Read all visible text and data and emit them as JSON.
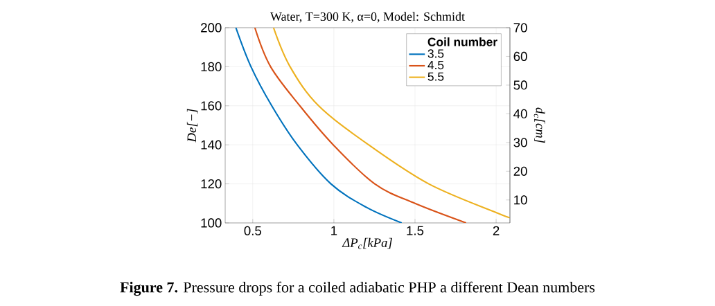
{
  "chart_data": {
    "type": "line",
    "title": "Water, T=300 K, α=0, Model: Schmidt",
    "xlabel": "ΔP$_{c}$[kPa]",
    "ylabel": "De[−]",
    "y2label": "d$_{c}$[cm]",
    "legend_title": "Coil number",
    "legend": "top right",
    "grid": true,
    "xlim": [
      0.33,
      2.085
    ],
    "xticks": [
      0.5,
      1,
      1.5,
      2
    ],
    "ylim": [
      100,
      200
    ],
    "yticks": [
      100,
      120,
      140,
      160,
      180,
      200
    ],
    "y2lim": [
      2,
      70
    ],
    "y2ticks": [
      10,
      20,
      30,
      40,
      50,
      60,
      70
    ],
    "series": [
      {
        "name": "3.5",
        "color": "#0072bd",
        "x": [
          0.396,
          0.489,
          0.617,
          0.774,
          0.982,
          1.2,
          1.418
        ],
        "values": [
          200,
          180,
          160,
          140,
          120,
          108,
          100
        ]
      },
      {
        "name": "4.5",
        "color": "#d95319",
        "x": [
          0.513,
          0.61,
          0.79,
          0.996,
          1.252,
          1.5,
          1.815
        ],
        "values": [
          200,
          180,
          160,
          140,
          120,
          110,
          100
        ]
      },
      {
        "name": "5.5",
        "color": "#edb120",
        "x": [
          0.628,
          0.73,
          0.906,
          1.214,
          1.585,
          2.0,
          2.085
        ],
        "values": [
          200,
          180,
          160,
          140,
          120,
          105.3,
          102.7
        ]
      }
    ],
    "annotations": [
      "**Figure 7.** Pressure drops for a coiled adiabatic PHP a different Dean numbers"
    ]
  }
}
